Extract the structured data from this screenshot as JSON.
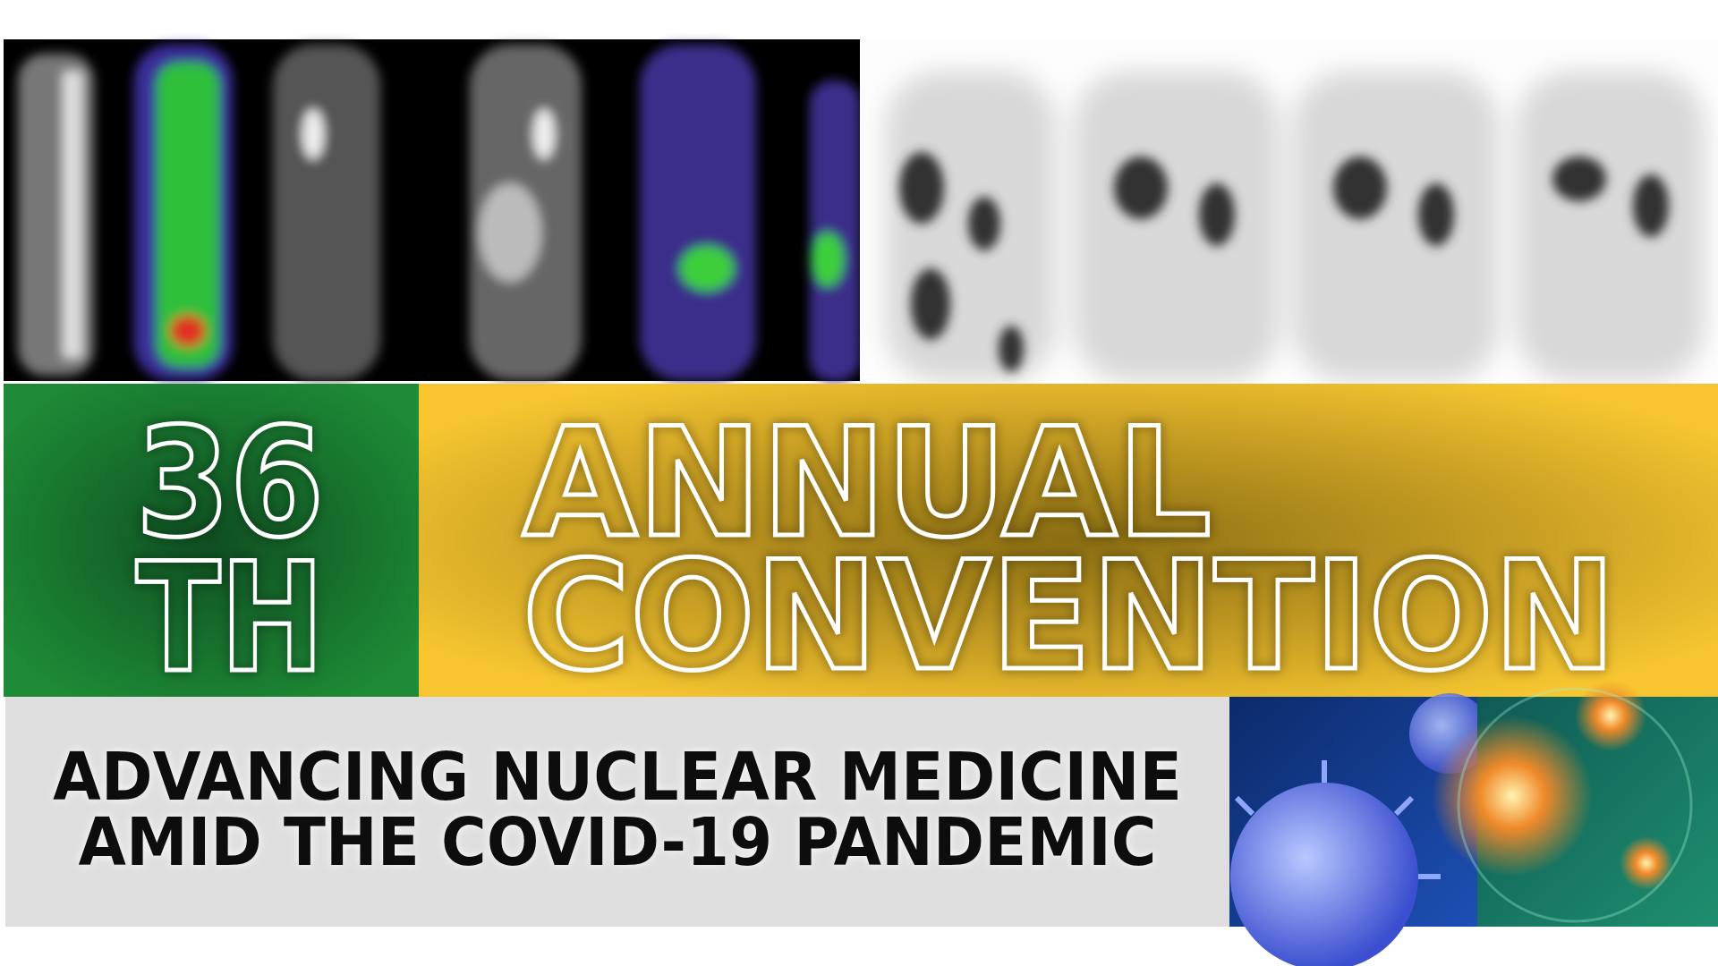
{
  "banner": {
    "number": "36",
    "suffix": "TH",
    "title_line1": "ANNUAL",
    "title_line2": "CONVENTION",
    "theme_line1": "ADVANCING NUCLEAR MEDICINE",
    "theme_line2": "AMID THE COVID-19 PANDEMIC"
  }
}
